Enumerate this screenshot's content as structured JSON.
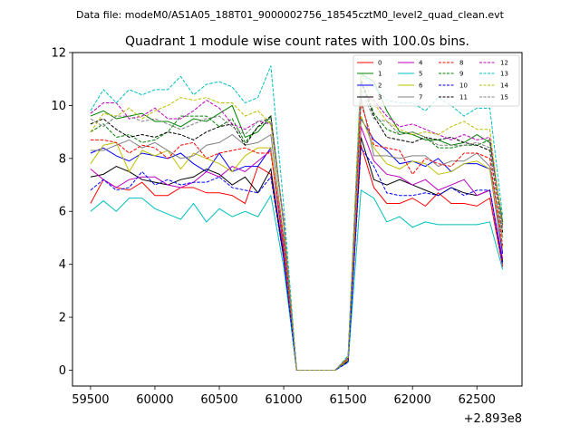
{
  "header": {
    "data_file": "Data file: modeM0/AS1A05_188T01_9000002756_18545cztM0_level2_quad_clean.evt"
  },
  "chart_data": {
    "type": "line",
    "title": "Quadrant 1 module wise count rates with 100.0s bins.",
    "xlabel": "",
    "ylabel": "",
    "x_offset_label": "+2.893e8",
    "xlim": [
      59360,
      62850
    ],
    "ylim": [
      -0.6,
      12
    ],
    "xticks": [
      59500,
      60000,
      60500,
      61000,
      61500,
      62000,
      62500
    ],
    "yticks": [
      0,
      2,
      4,
      6,
      8,
      10,
      12
    ],
    "grid": false,
    "legend": "top-right",
    "x": [
      59500,
      59600,
      59700,
      59800,
      59900,
      60000,
      60100,
      60200,
      60300,
      60400,
      60500,
      60600,
      60700,
      60800,
      60900,
      61000,
      61100,
      61200,
      61300,
      61400,
      61500,
      61600,
      61700,
      61800,
      61900,
      62000,
      62100,
      62200,
      62300,
      62400,
      62500,
      62600,
      62700
    ],
    "series": [
      {
        "name": "0",
        "color": "#ff0000",
        "dash": "solid",
        "values": [
          6.3,
          7.2,
          6.9,
          6.8,
          7.1,
          6.6,
          6.6,
          6.9,
          6.9,
          6.7,
          6.7,
          6.6,
          6.3,
          7.7,
          7.4,
          4.2,
          0,
          0,
          0,
          0,
          0.35,
          8.5,
          6.9,
          6.3,
          6.3,
          6.5,
          6.2,
          6.7,
          6.3,
          6.3,
          6.2,
          6.5,
          3.9
        ]
      },
      {
        "name": "1",
        "color": "#008000",
        "dash": "solid",
        "values": [
          9.6,
          9.8,
          9.5,
          9.6,
          9.7,
          9.4,
          9.4,
          9.2,
          9.5,
          9.4,
          9.7,
          10.0,
          8.8,
          9.0,
          9.6,
          5.6,
          0,
          0,
          0,
          0,
          0.5,
          11.2,
          10.9,
          9.8,
          9.0,
          8.9,
          8.7,
          8.7,
          8.5,
          8.6,
          8.9,
          8.6,
          5.6
        ]
      },
      {
        "name": "2",
        "color": "#0000ff",
        "dash": "solid",
        "values": [
          8.2,
          8.4,
          8.1,
          7.9,
          8.2,
          8.1,
          8.0,
          8.2,
          7.8,
          7.5,
          8.2,
          7.5,
          7.7,
          7.7,
          8.4,
          4.6,
          0,
          0,
          0,
          0,
          0.4,
          9.5,
          8.7,
          8.3,
          7.8,
          7.9,
          7.7,
          8.0,
          7.5,
          7.8,
          7.8,
          7.6,
          4.4
        ]
      },
      {
        "name": "3",
        "color": "#000000",
        "dash": "solid",
        "values": [
          7.3,
          7.4,
          7.7,
          7.5,
          7.2,
          7.1,
          7.0,
          7.2,
          7.3,
          7.6,
          7.4,
          7.0,
          7.3,
          6.7,
          7.6,
          4.3,
          0,
          0,
          0,
          0,
          0.35,
          8.8,
          7.2,
          7.0,
          7.2,
          7.0,
          6.8,
          6.6,
          6.9,
          6.7,
          6.6,
          6.8,
          4.1
        ]
      },
      {
        "name": "4",
        "color": "#bf00bf",
        "dash": "solid",
        "values": [
          7.6,
          7.2,
          6.9,
          7.2,
          7.3,
          7.3,
          7.0,
          6.9,
          7.1,
          7.5,
          7.3,
          7.7,
          7.5,
          7.9,
          8.3,
          4.5,
          0,
          0,
          0,
          0,
          0.4,
          9.2,
          7.9,
          7.4,
          7.3,
          7.0,
          7.2,
          6.8,
          7.0,
          7.2,
          6.6,
          6.8,
          4.2
        ]
      },
      {
        "name": "5",
        "color": "#00bfbf",
        "dash": "solid",
        "values": [
          6.0,
          6.4,
          6.0,
          6.5,
          6.5,
          6.1,
          5.9,
          5.7,
          6.3,
          5.6,
          6.1,
          5.8,
          6.0,
          5.8,
          6.6,
          3.9,
          0,
          0,
          0,
          0,
          0.3,
          6.8,
          6.5,
          5.6,
          5.8,
          5.4,
          5.6,
          5.5,
          5.5,
          5.5,
          5.5,
          5.6,
          3.8
        ]
      },
      {
        "name": "6",
        "color": "#bfbf00",
        "dash": "solid",
        "values": [
          7.8,
          8.5,
          8.6,
          7.5,
          8.3,
          8.1,
          8.3,
          7.6,
          8.2,
          8.0,
          7.8,
          7.5,
          8.1,
          8.4,
          8.4,
          4.8,
          0,
          0,
          0,
          0,
          0.4,
          9.6,
          8.4,
          7.8,
          7.6,
          7.9,
          7.8,
          7.4,
          7.5,
          7.8,
          7.9,
          7.6,
          4.6
        ]
      },
      {
        "name": "7",
        "color": "#808080",
        "dash": "solid",
        "values": [
          8.3,
          8.3,
          8.5,
          8.7,
          8.4,
          8.6,
          8.3,
          8.0,
          8.1,
          8.5,
          8.6,
          8.9,
          8.5,
          8.6,
          8.9,
          5.0,
          0,
          0,
          0,
          0,
          0.45,
          10.3,
          8.1,
          8.1,
          8.0,
          8.1,
          8.1,
          7.7,
          7.9,
          7.9,
          8.2,
          7.7,
          5.0
        ]
      },
      {
        "name": "8",
        "color": "#ff0000",
        "dash": "dashed",
        "values": [
          8.7,
          8.7,
          8.6,
          8.2,
          8.5,
          8.4,
          8.0,
          8.5,
          8.6,
          8.0,
          8.2,
          8.3,
          8.4,
          8.2,
          8.2,
          4.9,
          0,
          0,
          0,
          0,
          0.45,
          10.1,
          8.5,
          8.4,
          8.3,
          7.4,
          8.0,
          7.8,
          7.7,
          8.2,
          8.2,
          8.0,
          4.7
        ]
      },
      {
        "name": "9",
        "color": "#008000",
        "dash": "dashed",
        "values": [
          9.0,
          9.3,
          8.8,
          8.9,
          8.6,
          8.7,
          9.0,
          9.6,
          9.6,
          9.6,
          9.2,
          9.5,
          8.6,
          9.2,
          9.4,
          5.5,
          0,
          0,
          0,
          0,
          0.5,
          11.0,
          9.7,
          9.1,
          8.9,
          9.0,
          8.8,
          8.4,
          8.4,
          8.5,
          8.5,
          8.7,
          5.5
        ]
      },
      {
        "name": "10",
        "color": "#0000ff",
        "dash": "dashed",
        "values": [
          6.8,
          7.2,
          6.8,
          6.9,
          7.5,
          7.0,
          7.2,
          7.0,
          7.1,
          7.1,
          7.3,
          6.9,
          6.8,
          6.7,
          7.3,
          4.2,
          0,
          0,
          0,
          0,
          0.3,
          8.4,
          7.7,
          6.7,
          6.6,
          6.6,
          6.7,
          6.6,
          6.9,
          6.6,
          6.8,
          6.8,
          4.0
        ]
      },
      {
        "name": "11",
        "color": "#000000",
        "dash": "dashed",
        "values": [
          9.3,
          9.5,
          9.1,
          8.8,
          8.9,
          8.8,
          9.0,
          8.9,
          8.7,
          9.0,
          9.2,
          9.3,
          8.5,
          9.2,
          9.6,
          5.5,
          0,
          0,
          0,
          0,
          0.5,
          10.9,
          9.6,
          8.8,
          8.7,
          8.6,
          8.8,
          8.7,
          8.8,
          8.6,
          8.5,
          8.3,
          5.2
        ]
      },
      {
        "name": "12",
        "color": "#bf00bf",
        "dash": "dashed",
        "values": [
          9.7,
          10.1,
          10.1,
          9.5,
          9.6,
          9.9,
          9.5,
          9.5,
          9.8,
          10.2,
          9.9,
          9.3,
          9.1,
          9.4,
          9.3,
          5.7,
          0,
          0,
          0,
          0,
          0.5,
          10.4,
          10.2,
          9.6,
          9.2,
          9.3,
          9.1,
          8.9,
          8.7,
          8.9,
          8.7,
          8.8,
          5.4
        ]
      },
      {
        "name": "13",
        "color": "#00bfbf",
        "dash": "dashed",
        "values": [
          9.8,
          10.6,
          10.1,
          10.6,
          10.4,
          10.6,
          10.6,
          11.1,
          10.4,
          10.8,
          10.9,
          10.7,
          10.1,
          10.3,
          11.5,
          6.2,
          0,
          0,
          0,
          0,
          0.55,
          11.2,
          10.7,
          10.2,
          10.1,
          10.1,
          9.8,
          10.3,
          10.0,
          9.6,
          9.9,
          9.9,
          5.8
        ]
      },
      {
        "name": "14",
        "color": "#bfbf00",
        "dash": "dashed",
        "values": [
          9.0,
          9.7,
          9.6,
          9.9,
          9.5,
          9.8,
          10.0,
          10.3,
          10.2,
          10.3,
          10.1,
          10.1,
          9.6,
          9.8,
          9.3,
          5.6,
          0,
          0,
          0,
          0,
          0.5,
          11.2,
          10.1,
          9.4,
          9.1,
          8.9,
          9.0,
          8.9,
          9.2,
          9.4,
          9.1,
          9.1,
          5.3
        ]
      },
      {
        "name": "15",
        "color": "#808080",
        "dash": "dashed",
        "values": [
          9.5,
          9.2,
          9.6,
          9.6,
          9.4,
          9.5,
          9.3,
          9.1,
          9.3,
          9.5,
          9.6,
          9.2,
          8.9,
          9.4,
          9.5,
          5.5,
          0,
          0,
          0,
          0,
          0.5,
          10.6,
          9.5,
          9.4,
          8.9,
          9.0,
          8.8,
          8.5,
          8.5,
          8.5,
          8.6,
          8.4,
          5.3
        ]
      }
    ]
  }
}
